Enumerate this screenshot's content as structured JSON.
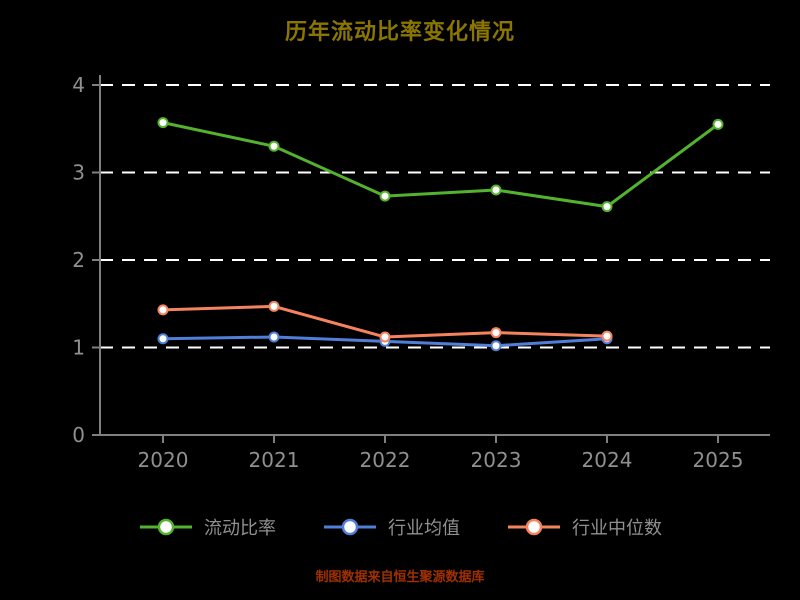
{
  "title": "历年流动比率变化情况",
  "footer": "制图数据来自恒生聚源数据库",
  "colors": {
    "background": "#000000",
    "title": "#8a7600",
    "axis": "#7f7f7f",
    "tick_label": "#909090",
    "grid": "#ffffff",
    "legend_label": "#909090",
    "footer": "#a03000",
    "marker_fill": "#ffffff"
  },
  "chart_data": {
    "type": "line",
    "title": "历年流动比率变化情况",
    "x": [
      "2020",
      "2021",
      "2022",
      "2023",
      "2024",
      "2025"
    ],
    "xlabel": "",
    "ylabel": "",
    "ylim": [
      0,
      4
    ],
    "yticks": [
      0,
      1,
      2,
      3,
      4
    ],
    "grid": "horizontal-dashed",
    "legend_position": "bottom",
    "series": [
      {
        "name": "流动比率",
        "color": "#54b32e",
        "values": [
          3.57,
          3.3,
          2.73,
          2.8,
          2.61,
          3.55
        ]
      },
      {
        "name": "行业均值",
        "color": "#4f7fd9",
        "values": [
          1.1,
          1.12,
          1.07,
          1.02,
          1.1,
          null
        ]
      },
      {
        "name": "行业中位数",
        "color": "#f5835e",
        "values": [
          1.43,
          1.47,
          1.12,
          1.17,
          1.13,
          null
        ]
      }
    ],
    "annotation": "制图数据来自恒生聚源数据库"
  }
}
